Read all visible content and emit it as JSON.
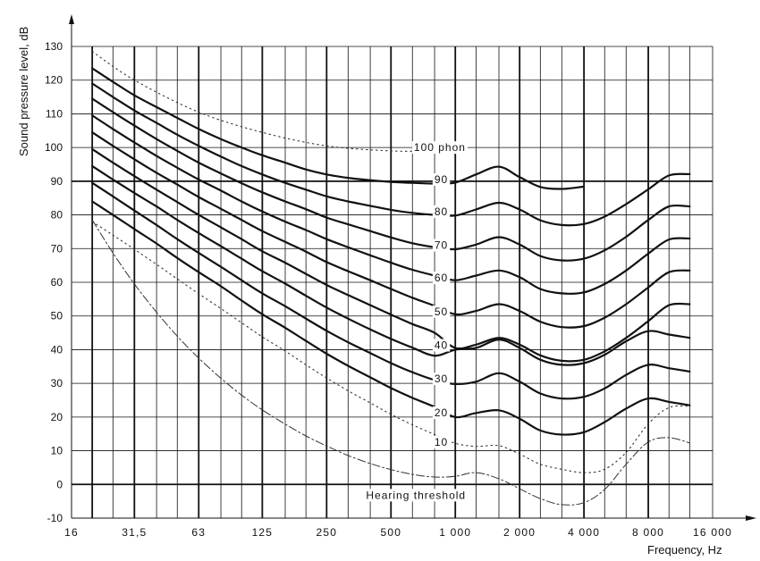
{
  "chart_data": {
    "type": "line",
    "xlabel": "Frequency, Hz",
    "ylabel": "Sound pressure level, dB",
    "x_scale": "log",
    "x_tick_labels": [
      "16",
      "31,5",
      "63",
      "125",
      "250",
      "500",
      "1 000",
      "2 000",
      "4 000",
      "8 000",
      "16 000"
    ],
    "x_tick_values": [
      16,
      31.5,
      63,
      125,
      250,
      500,
      1000,
      2000,
      4000,
      8000,
      16000
    ],
    "ylim": [
      -10,
      130
    ],
    "y_ticks": [
      -10,
      0,
      10,
      20,
      30,
      40,
      50,
      60,
      70,
      80,
      90,
      100,
      110,
      120,
      130
    ],
    "grid": true,
    "threshold_label": "Hearing threshold",
    "series": [
      {
        "name": "100 phon",
        "style": "solid",
        "x": [
          20,
          25,
          31.5,
          40,
          50,
          63,
          80,
          100,
          125,
          160,
          200,
          250,
          315,
          400,
          500,
          630,
          800,
          1000,
          1250,
          1600,
          2000,
          2500,
          3150,
          4000
        ],
        "y": [
          123.5,
          119.5,
          115.5,
          112,
          108.8,
          105.5,
          102.5,
          100,
          97.7,
          95.5,
          93.5,
          92,
          91,
          90.3,
          89.8,
          89.5,
          89.3,
          89.6,
          92,
          94.3,
          91.2,
          88.3,
          87.7,
          88.4
        ]
      },
      {
        "name": "90",
        "style": "solid",
        "x": [
          20,
          25,
          31.5,
          40,
          50,
          63,
          80,
          100,
          125,
          160,
          200,
          250,
          315,
          400,
          500,
          630,
          800,
          1000,
          1250,
          1600,
          2000,
          2500,
          3150,
          4000,
          5000,
          6300,
          8000,
          10000,
          12500
        ],
        "y": [
          119,
          115,
          111,
          107.3,
          103.8,
          100.5,
          97.3,
          94.5,
          92,
          89.5,
          87.5,
          85.5,
          84,
          82.7,
          81.5,
          80.6,
          80,
          79.8,
          81.6,
          83.6,
          81.6,
          78.4,
          77,
          77.3,
          79.5,
          83.2,
          87.6,
          91.7,
          92.1
        ]
      },
      {
        "name": "80",
        "style": "solid",
        "x": [
          20,
          25,
          31.5,
          40,
          50,
          63,
          80,
          100,
          125,
          160,
          200,
          250,
          315,
          400,
          500,
          630,
          800,
          1000,
          1250,
          1600,
          2000,
          2500,
          3150,
          4000,
          5000,
          6300,
          8000,
          10000,
          12500
        ],
        "y": [
          114.5,
          110.5,
          106.5,
          102.5,
          99,
          95.5,
          92.3,
          89.4,
          86.7,
          84,
          81.7,
          79.2,
          77.2,
          75.2,
          73.3,
          71.6,
          70.4,
          69.8,
          71.2,
          73.4,
          71.2,
          67.8,
          66.5,
          67,
          69.5,
          73.5,
          78.5,
          82.5,
          82.5
        ]
      },
      {
        "name": "70",
        "style": "solid",
        "x": [
          20,
          25,
          31.5,
          40,
          50,
          63,
          80,
          100,
          125,
          160,
          200,
          250,
          315,
          400,
          500,
          630,
          800,
          1000,
          1250,
          1600,
          2000,
          2500,
          3150,
          4000,
          5000,
          6300,
          8000,
          10000,
          12500
        ],
        "y": [
          109.5,
          105.5,
          101.5,
          97.5,
          94,
          90.5,
          87.2,
          84,
          81,
          78,
          75.5,
          72.8,
          70.4,
          68,
          65.8,
          63.7,
          62,
          60.6,
          62,
          63.5,
          61.5,
          58,
          56.7,
          57,
          59.5,
          63.5,
          68.5,
          72.7,
          73
        ]
      },
      {
        "name": "60",
        "style": "solid",
        "x": [
          20,
          25,
          31.5,
          40,
          50,
          63,
          80,
          100,
          125,
          160,
          200,
          250,
          315,
          400,
          500,
          630,
          800,
          1000,
          1250,
          1600,
          2000,
          2500,
          3150,
          4000,
          5000,
          6300,
          8000,
          10000,
          12500
        ],
        "y": [
          104.5,
          100.5,
          96.5,
          92.5,
          89,
          85.3,
          81.8,
          78.5,
          75.2,
          72,
          69.1,
          66,
          63.3,
          60.6,
          58,
          55.4,
          53,
          50.5,
          51.5,
          53.5,
          51.5,
          48.3,
          46.7,
          47,
          49.5,
          53.5,
          58.5,
          63,
          63.5
        ]
      },
      {
        "name": "50",
        "style": "solid",
        "x": [
          20,
          25,
          31.5,
          40,
          50,
          63,
          80,
          100,
          125,
          160,
          200,
          250,
          315,
          400,
          500,
          630,
          800,
          1000,
          1250,
          1600,
          2000,
          2500,
          3150,
          4000,
          5000,
          6300,
          8000,
          10000,
          12500
        ],
        "y": [
          99.5,
          95.5,
          91.5,
          87.5,
          83.8,
          80,
          76.3,
          72.8,
          69.2,
          65.8,
          62.5,
          59.2,
          56.2,
          53.2,
          50.4,
          47.6,
          45,
          40.5,
          41.5,
          43.5,
          41.5,
          38.3,
          36.7,
          37,
          39.5,
          43.5,
          48.5,
          53.2,
          53.5
        ]
      },
      {
        "name": "40",
        "style": "solid",
        "x": [
          20,
          25,
          31.5,
          40,
          50,
          63,
          80,
          100,
          125,
          160,
          200,
          250,
          315,
          400,
          500,
          630,
          800,
          1000,
          1250,
          1600,
          2000,
          2500,
          3150,
          4000,
          5000,
          6300,
          8000,
          10000,
          12500
        ],
        "y": [
          94.5,
          90.5,
          86.5,
          82.5,
          78.5,
          74.6,
          70.7,
          67,
          63.3,
          59.6,
          56,
          52.5,
          49.2,
          46,
          43.2,
          40.6,
          38.2,
          40,
          40.5,
          43,
          40.5,
          37,
          35.5,
          36,
          38.5,
          42.5,
          45.5,
          44.5,
          43.5
        ]
      },
      {
        "name": "30",
        "style": "solid",
        "x": [
          20,
          25,
          31.5,
          40,
          50,
          63,
          80,
          100,
          125,
          160,
          200,
          250,
          315,
          400,
          500,
          630,
          800,
          1000,
          1250,
          1600,
          2000,
          2500,
          3150,
          4000,
          5000,
          6300,
          8000,
          10000,
          12500
        ],
        "y": [
          89.5,
          85.5,
          81.3,
          77,
          72.8,
          68.7,
          64.6,
          60.6,
          56.7,
          52.9,
          49.2,
          45.6,
          42.2,
          39,
          36,
          33.3,
          31,
          29.8,
          30.5,
          33,
          30.5,
          27,
          25.5,
          26,
          28.5,
          32.5,
          35.5,
          34.5,
          33.5
        ]
      },
      {
        "name": "20",
        "style": "solid",
        "x": [
          20,
          25,
          31.5,
          40,
          50,
          63,
          80,
          100,
          125,
          160,
          200,
          250,
          315,
          400,
          500,
          630,
          800,
          1000,
          1250,
          1600,
          2000,
          2500,
          3150,
          4000,
          5000,
          6300,
          8000,
          10000,
          12500
        ],
        "y": [
          84,
          80,
          75.8,
          71.5,
          67.2,
          63,
          58.8,
          54.6,
          50.5,
          46.5,
          42.6,
          38.8,
          35.2,
          31.8,
          28.6,
          25.7,
          23,
          20,
          21.2,
          22,
          19.5,
          16,
          14.8,
          15.5,
          18.5,
          22.5,
          25.5,
          24.5,
          23.5
        ]
      },
      {
        "name": "10",
        "style": "dotted",
        "x": [
          20,
          25,
          31.5,
          40,
          50,
          63,
          80,
          100,
          125,
          160,
          200,
          250,
          315,
          400,
          500,
          630,
          800,
          1000,
          1250,
          1600,
          2000,
          2500,
          3150,
          4000,
          5000,
          6300,
          8000,
          10000,
          12500
        ],
        "y": [
          78,
          74,
          69.8,
          65.3,
          61,
          56.6,
          52.2,
          48,
          43.8,
          39.6,
          35.5,
          31.6,
          27.8,
          24.2,
          20.8,
          17.7,
          14.8,
          12.2,
          11.3,
          11.5,
          9,
          6,
          4.5,
          3.5,
          4.5,
          9.5,
          18,
          22.8,
          23.2
        ]
      },
      {
        "name": "Hearing threshold",
        "style": "dashed",
        "x": [
          20,
          25,
          31.5,
          40,
          50,
          63,
          80,
          100,
          125,
          160,
          200,
          250,
          315,
          400,
          500,
          630,
          800,
          1000,
          1250,
          1600,
          2000,
          2500,
          3150,
          4000,
          5000,
          6300,
          8000,
          10000,
          12500
        ],
        "y": [
          78.5,
          68.7,
          59.5,
          51.1,
          44,
          37.5,
          31.5,
          26.5,
          22.1,
          17.9,
          14.4,
          11.4,
          8.6,
          6.2,
          4.4,
          3,
          2.2,
          2.4,
          3.5,
          1.7,
          -1.3,
          -4.2,
          -6,
          -5.4,
          -1.5,
          6,
          12.6,
          13.9,
          12.3
        ]
      },
      {
        "name": "",
        "style": "dotted",
        "x": [
          20,
          31.5,
          63,
          125,
          250,
          500,
          800
        ],
        "y": [
          128.5,
          120,
          110.5,
          104.5,
          100.5,
          99,
          99
        ]
      }
    ]
  }
}
